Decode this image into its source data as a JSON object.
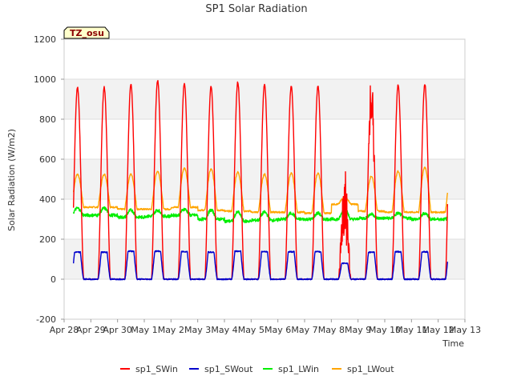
{
  "chart_data": {
    "type": "line",
    "title": "SP1 Solar Radiation",
    "xlabel": "Time",
    "ylabel": "Solar Radiation (W/m2)",
    "site_label": "TZ_osu",
    "ylim": [
      -200,
      1200
    ],
    "yticks": [
      -200,
      0,
      200,
      400,
      600,
      800,
      1000,
      1200
    ],
    "xlim": [
      0,
      15
    ],
    "x_tick_labels": [
      "Apr 28",
      "Apr 29",
      "Apr 30",
      "May 1",
      "May 2",
      "May 3",
      "May 4",
      "May 5",
      "May 6",
      "May 7",
      "May 8",
      "May 9",
      "May 10",
      "May 11",
      "May 12",
      "May 13"
    ],
    "x_units": "days since Apr 28 00:00",
    "grid": "horizontal bands",
    "legend_position": "bottom",
    "daily_peaks": {
      "days": [
        1,
        2,
        3,
        4,
        5,
        6,
        7,
        8,
        9,
        10,
        11,
        12,
        13,
        14
      ],
      "sp1_SWin": [
        960,
        975,
        995,
        980,
        965,
        985,
        975,
        965,
        965,
        600,
        985,
        970,
        975,
        990
      ],
      "sp1_SWout": [
        135,
        140,
        140,
        138,
        135,
        140,
        138,
        137,
        137,
        80,
        135,
        137,
        137,
        142
      ],
      "sp1_LWin_day": [
        355,
        345,
        345,
        350,
        345,
        335,
        335,
        330,
        330,
        350,
        325,
        330,
        330,
        325
      ],
      "sp1_LWin_night": [
        320,
        310,
        315,
        320,
        300,
        290,
        295,
        300,
        300,
        300,
        305,
        305,
        300,
        300
      ],
      "sp1_LWout_day": [
        525,
        525,
        540,
        555,
        550,
        535,
        525,
        530,
        530,
        410,
        515,
        540,
        560,
        550
      ],
      "sp1_LWout_night": [
        360,
        350,
        350,
        360,
        345,
        340,
        335,
        335,
        330,
        375,
        340,
        335,
        335,
        335
      ]
    },
    "series": [
      {
        "name": "sp1_SWin",
        "color": "#ff0000"
      },
      {
        "name": "sp1_SWout",
        "color": "#0000cc"
      },
      {
        "name": "sp1_LWin",
        "color": "#00ee00"
      },
      {
        "name": "sp1_LWout",
        "color": "#ffa500"
      }
    ]
  }
}
